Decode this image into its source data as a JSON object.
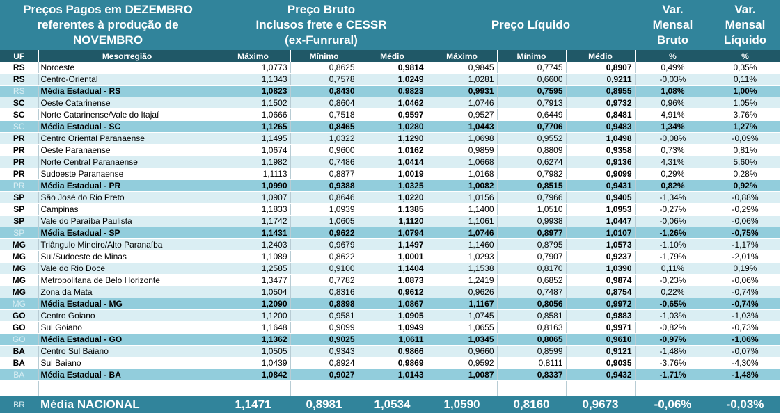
{
  "header": {
    "title_line1": "Preços Pagos em DEZEMBRO",
    "title_line2": "referentes à produção de",
    "title_line3": "NOVEMBRO",
    "bruto_line1": "Preço Bruto",
    "bruto_line2": "Inclusos frete e CESSR",
    "bruto_line3": "(ex-Funrural)",
    "liquido": "Preço Líquido",
    "var_bruto_line1": "Var.",
    "var_bruto_line2": "Mensal",
    "var_bruto_line3": "Bruto",
    "var_liq_line1": "Var.",
    "var_liq_line2": "Mensal",
    "var_liq_line3": "Líquido"
  },
  "columns": [
    "UF",
    "Mesorregião",
    "Máximo",
    "Mínimo",
    "Médio",
    "Máximo",
    "Mínimo",
    "Médio",
    "%",
    "%"
  ],
  "rows": [
    {
      "uf": "RS",
      "meso": "Noroeste",
      "bmax": "1,0773",
      "bmin": "0,8625",
      "bmed": "0,9814",
      "lmax": "0,9845",
      "lmin": "0,7745",
      "lmed": "0,8907",
      "vb": "0,49%",
      "vl": "0,35%",
      "type": "l"
    },
    {
      "uf": "RS",
      "meso": "Centro-Oriental",
      "bmax": "1,1343",
      "bmin": "0,7578",
      "bmed": "1,0249",
      "lmax": "1,0281",
      "lmin": "0,6600",
      "lmed": "0,9211",
      "vb": "-0,03%",
      "vl": "0,11%",
      "type": "d"
    },
    {
      "uf": "RS",
      "meso": "Média Estadual - RS",
      "bmax": "1,0823",
      "bmin": "0,8430",
      "bmed": "0,9823",
      "lmax": "0,9931",
      "lmin": "0,7595",
      "lmed": "0,8955",
      "vb": "1,08%",
      "vl": "1,00%",
      "type": "avg"
    },
    {
      "uf": "SC",
      "meso": "Oeste Catarinense",
      "bmax": "1,1502",
      "bmin": "0,8604",
      "bmed": "1,0462",
      "lmax": "1,0746",
      "lmin": "0,7913",
      "lmed": "0,9732",
      "vb": "0,96%",
      "vl": "1,05%",
      "type": "d"
    },
    {
      "uf": "SC",
      "meso": "Norte Catarinense/Vale do Itajaí",
      "bmax": "1,0666",
      "bmin": "0,7518",
      "bmed": "0,9597",
      "lmax": "0,9527",
      "lmin": "0,6449",
      "lmed": "0,8481",
      "vb": "4,91%",
      "vl": "3,76%",
      "type": "l"
    },
    {
      "uf": "SC",
      "meso": "Média Estadual - SC",
      "bmax": "1,1265",
      "bmin": "0,8465",
      "bmed": "1,0280",
      "lmax": "1,0443",
      "lmin": "0,7706",
      "lmed": "0,9483",
      "vb": "1,34%",
      "vl": "1,27%",
      "type": "avg"
    },
    {
      "uf": "PR",
      "meso": "Centro Oriental Paranaense",
      "bmax": "1,1495",
      "bmin": "1,0322",
      "bmed": "1,1290",
      "lmax": "1,0698",
      "lmin": "0,9552",
      "lmed": "1,0498",
      "vb": "-0,08%",
      "vl": "-0,09%",
      "type": "d"
    },
    {
      "uf": "PR",
      "meso": "Oeste Paranaense",
      "bmax": "1,0674",
      "bmin": "0,9600",
      "bmed": "1,0162",
      "lmax": "0,9859",
      "lmin": "0,8809",
      "lmed": "0,9358",
      "vb": "0,73%",
      "vl": "0,81%",
      "type": "l"
    },
    {
      "uf": "PR",
      "meso": "Norte Central Paranaense",
      "bmax": "1,1982",
      "bmin": "0,7486",
      "bmed": "1,0414",
      "lmax": "1,0668",
      "lmin": "0,6274",
      "lmed": "0,9136",
      "vb": "4,31%",
      "vl": "5,60%",
      "type": "d"
    },
    {
      "uf": "PR",
      "meso": "Sudoeste Paranaense",
      "bmax": "1,1113",
      "bmin": "0,8877",
      "bmed": "1,0019",
      "lmax": "1,0168",
      "lmin": "0,7982",
      "lmed": "0,9099",
      "vb": "0,29%",
      "vl": "0,28%",
      "type": "l"
    },
    {
      "uf": "PR",
      "meso": "Média Estadual - PR",
      "bmax": "1,0990",
      "bmin": "0,9388",
      "bmed": "1,0325",
      "lmax": "1,0082",
      "lmin": "0,8515",
      "lmed": "0,9431",
      "vb": "0,82%",
      "vl": "0,92%",
      "type": "avg"
    },
    {
      "uf": "SP",
      "meso": "São José do Rio Preto",
      "bmax": "1,0907",
      "bmin": "0,8646",
      "bmed": "1,0220",
      "lmax": "1,0156",
      "lmin": "0,7966",
      "lmed": "0,9405",
      "vb": "-1,34%",
      "vl": "-0,88%",
      "type": "d"
    },
    {
      "uf": "SP",
      "meso": "Campinas",
      "bmax": "1,1833",
      "bmin": "1,0939",
      "bmed": "1,1385",
      "lmax": "1,1400",
      "lmin": "1,0510",
      "lmed": "1,0953",
      "vb": "-0,27%",
      "vl": "-0,29%",
      "type": "l"
    },
    {
      "uf": "SP",
      "meso": "Vale do Paraíba Paulista",
      "bmax": "1,1742",
      "bmin": "1,0605",
      "bmed": "1,1120",
      "lmax": "1,1061",
      "lmin": "0,9938",
      "lmed": "1,0447",
      "vb": "-0,06%",
      "vl": "-0,06%",
      "type": "d"
    },
    {
      "uf": "SP",
      "meso": "Média Estadual - SP",
      "bmax": "1,1431",
      "bmin": "0,9622",
      "bmed": "1,0794",
      "lmax": "1,0746",
      "lmin": "0,8977",
      "lmed": "1,0107",
      "vb": "-1,26%",
      "vl": "-0,75%",
      "type": "avg"
    },
    {
      "uf": "MG",
      "meso": "Triângulo Mineiro/Alto Paranaíba",
      "bmax": "1,2403",
      "bmin": "0,9679",
      "bmed": "1,1497",
      "lmax": "1,1460",
      "lmin": "0,8795",
      "lmed": "1,0573",
      "vb": "-1,10%",
      "vl": "-1,17%",
      "type": "d"
    },
    {
      "uf": "MG",
      "meso": "Sul/Sudoeste de Minas",
      "bmax": "1,1089",
      "bmin": "0,8622",
      "bmed": "1,0001",
      "lmax": "1,0293",
      "lmin": "0,7907",
      "lmed": "0,9237",
      "vb": "-1,79%",
      "vl": "-2,01%",
      "type": "l"
    },
    {
      "uf": "MG",
      "meso": "Vale do Rio Doce",
      "bmax": "1,2585",
      "bmin": "0,9100",
      "bmed": "1,1404",
      "lmax": "1,1538",
      "lmin": "0,8170",
      "lmed": "1,0390",
      "vb": "0,11%",
      "vl": "0,19%",
      "type": "d"
    },
    {
      "uf": "MG",
      "meso": "Metropolitana de Belo Horizonte",
      "bmax": "1,3477",
      "bmin": "0,7782",
      "bmed": "1,0873",
      "lmax": "1,2419",
      "lmin": "0,6852",
      "lmed": "0,9874",
      "vb": "-0,23%",
      "vl": "-0,06%",
      "type": "l"
    },
    {
      "uf": "MG",
      "meso": "Zona da Mata",
      "bmax": "1,0504",
      "bmin": "0,8316",
      "bmed": "0,9612",
      "lmax": "0,9626",
      "lmin": "0,7487",
      "lmed": "0,8754",
      "vb": "0,22%",
      "vl": "-0,74%",
      "type": "d"
    },
    {
      "uf": "MG",
      "meso": "Média Estadual - MG",
      "bmax": "1,2090",
      "bmin": "0,8898",
      "bmed": "1,0867",
      "lmax": "1,1167",
      "lmin": "0,8056",
      "lmed": "0,9972",
      "vb": "-0,65%",
      "vl": "-0,74%",
      "type": "avg"
    },
    {
      "uf": "GO",
      "meso": "Centro Goiano",
      "bmax": "1,1200",
      "bmin": "0,9581",
      "bmed": "1,0905",
      "lmax": "1,0745",
      "lmin": "0,8581",
      "lmed": "0,9883",
      "vb": "-1,03%",
      "vl": "-1,03%",
      "type": "d"
    },
    {
      "uf": "GO",
      "meso": "Sul Goiano",
      "bmax": "1,1648",
      "bmin": "0,9099",
      "bmed": "1,0949",
      "lmax": "1,0655",
      "lmin": "0,8163",
      "lmed": "0,9971",
      "vb": "-0,82%",
      "vl": "-0,73%",
      "type": "l"
    },
    {
      "uf": "GO",
      "meso": "Média Estadual - GO",
      "bmax": "1,1362",
      "bmin": "0,9025",
      "bmed": "1,0611",
      "lmax": "1,0345",
      "lmin": "0,8065",
      "lmed": "0,9610",
      "vb": "-0,97%",
      "vl": "-1,06%",
      "type": "avg"
    },
    {
      "uf": "BA",
      "meso": "Centro Sul Baiano",
      "bmax": "1,0505",
      "bmin": "0,9343",
      "bmed": "0,9866",
      "lmax": "0,9660",
      "lmin": "0,8599",
      "lmed": "0,9121",
      "vb": "-1,48%",
      "vl": "-0,07%",
      "type": "d"
    },
    {
      "uf": "BA",
      "meso": "Sul Baiano",
      "bmax": "1,0439",
      "bmin": "0,8924",
      "bmed": "0,9869",
      "lmax": "0,9592",
      "lmin": "0,8111",
      "lmed": "0,9035",
      "vb": "-3,76%",
      "vl": "-4,30%",
      "type": "l"
    },
    {
      "uf": "BA",
      "meso": "Média Estadual - BA",
      "bmax": "1,0842",
      "bmin": "0,9027",
      "bmed": "1,0143",
      "lmax": "1,0087",
      "lmin": "0,8337",
      "lmed": "0,9432",
      "vb": "-1,71%",
      "vl": "-1,48%",
      "type": "avg"
    }
  ],
  "national": {
    "uf": "BR",
    "meso": "Média NACIONAL",
    "bmax": "1,1471",
    "bmin": "0,8981",
    "bmed": "1,0534",
    "lmax": "1,0590",
    "lmin": "0,8160",
    "lmed": "0,9673",
    "vb": "-0,06%",
    "vl": "-0,03%"
  },
  "colors": {
    "header": "#31849b",
    "subheader": "#205867",
    "avg_row": "#92cddc",
    "alt_row": "#daeef3"
  }
}
